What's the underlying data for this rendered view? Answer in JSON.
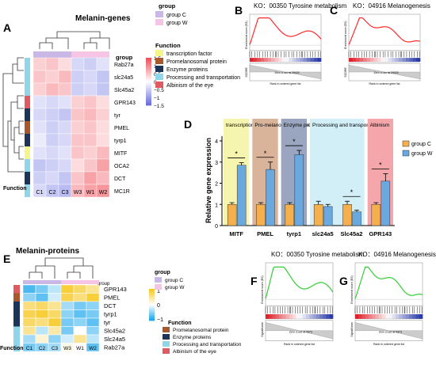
{
  "panels": {
    "A": {
      "letter": "A",
      "title": "Melanin-genes",
      "col_header": "group",
      "function_label": "Function",
      "genes": [
        "Rab27a",
        "slc24a5",
        "Slc45a2",
        "GPR143",
        "tyr",
        "PMEL",
        "tyrp1",
        "MITF",
        "OCA2",
        "DCT",
        "MC1R"
      ],
      "columns": [
        "C1",
        "C2",
        "C3",
        "W3",
        "W1",
        "W2"
      ],
      "column_groups": [
        "C",
        "C",
        "C",
        "W",
        "W",
        "W"
      ],
      "gene_functions": [
        "processing",
        "processing",
        "processing",
        "albinism",
        "enzyme",
        "promelanosomal",
        "enzyme",
        "transcription",
        "processing",
        "enzyme",
        "processing"
      ],
      "values": [
        [
          0.4,
          0.5,
          0.3,
          -0.4,
          -0.5,
          -0.3
        ],
        [
          0.5,
          0.4,
          0.6,
          -0.5,
          -0.4,
          -0.6
        ],
        [
          0.4,
          0.6,
          0.5,
          -0.5,
          -0.4,
          -0.6
        ],
        [
          -0.3,
          -0.4,
          -0.3,
          0.4,
          0.5,
          0.3
        ],
        [
          -0.4,
          -0.5,
          -0.6,
          0.5,
          0.6,
          0.4
        ],
        [
          -0.3,
          -0.5,
          -0.4,
          0.4,
          0.5,
          0.3
        ],
        [
          -0.2,
          -0.5,
          -0.4,
          0.5,
          0.5,
          0.3
        ],
        [
          -0.3,
          -0.4,
          -0.3,
          0.5,
          0.4,
          0.6
        ],
        [
          -0.6,
          -0.5,
          -0.4,
          0.3,
          0.5,
          0.8
        ],
        [
          -0.5,
          -0.4,
          -0.6,
          0.5,
          0.8,
          0.6
        ],
        [
          -0.4,
          -0.6,
          -0.7,
          0.6,
          0.8,
          0.9
        ]
      ],
      "row_footer_label": "Function",
      "scale_ticks": [
        "1.5",
        "1",
        "0.5",
        "0",
        "−0.5",
        "−1",
        "−1.5"
      ],
      "legend_group_title": "group",
      "legend_groups": [
        "group C",
        "group W"
      ],
      "legend_function_title": "Function",
      "legend_functions": [
        "transcription factor",
        "Promelanosomal protein",
        "Enzyme proteins",
        "Processing and transportation",
        "Albinism of the eye"
      ]
    },
    "B": {
      "letter": "B",
      "title": "KO：00350 Tyrosine metabolism",
      "ylabel_top": "Enrichment score (ES)",
      "ylabel_bottom": "SCORE",
      "xlabel": "Rank in ordered gene list",
      "zero_cross": "Zero cross at 29023"
    },
    "C": {
      "letter": "C",
      "title": "KO：04916 Melanogenesis",
      "ylabel_top": "Enrichment score (ES)",
      "ylabel_bottom": "SCORE",
      "xlabel": "Rank in ordered gene list",
      "zero_cross": "Zero cross at 29023"
    },
    "D": {
      "letter": "D",
      "ylabel": "Relative gene expression",
      "legend": [
        "group C",
        "group W"
      ],
      "boxes": [
        "transcription factor",
        "Pro-melanosomal protein",
        "Enzyme proteins",
        "Processing and transportation",
        "Albinism"
      ],
      "significance": [
        "*",
        "*",
        "*",
        "*",
        "*"
      ]
    },
    "E": {
      "letter": "E",
      "title": "Melanin-proteins",
      "col_header": "group",
      "proteins": [
        "GPR143",
        "PMEL",
        "DCT",
        "tyrp1",
        "tyr",
        "Slc45a2",
        "Slc24a5",
        "Rab27a"
      ],
      "columns": [
        "C1",
        "C2",
        "C3",
        "W3",
        "W1",
        "W2"
      ],
      "row_footer_label": "Function",
      "scale_ticks": [
        "1",
        "0",
        "−1"
      ],
      "legend_group_title": "group",
      "legend_groups": [
        "group C",
        "group W"
      ],
      "legend_function_title": "Function",
      "legend_functions": [
        "Promelanosomal protein",
        "Enzyme proteins",
        "Processing and transportation",
        "Albinism of the eye"
      ]
    },
    "F": {
      "letter": "F",
      "title": "KO：00350 Tyrosine metabolism",
      "ylabel_top": "Enrichment score (ES)",
      "ylabel_bottom": "SignalNoise",
      "xlabel": "Rank in ordered gene list",
      "zero_cross": "Zero cross at 4373"
    },
    "G": {
      "letter": "G",
      "title": "KO：04916 Melanogenesis",
      "ylabel_top": "Enrichment score (ES)",
      "ylabel_bottom": "SignalNoise",
      "xlabel": "Rank in ordered gene list",
      "zero_cross": "Zero cross at 4373"
    }
  },
  "colors": {
    "group_C": "#c9b7e6",
    "group_W": "#f6c4e4",
    "transcription": "#f6f58a",
    "promelanosomal": "#a8582a",
    "enzyme": "#1c3457",
    "processing": "#8fd6ea",
    "albinism": "#e05a62",
    "bar_C": "#f5b04d",
    "bar_W": "#6aa8e0",
    "box_transcription": "#f6f5b0",
    "box_promelanosomal": "#d9b39a",
    "box_enzyme": "#9aa6c0",
    "box_processing": "#d2eef7",
    "box_albinism": "#f4a6ab",
    "es_red": "#ff2a2a",
    "es_green": "#33cc33"
  },
  "chart_data": [
    {
      "type": "bar",
      "title": "",
      "ylabel": "Relative gene expression",
      "categories": [
        "MITF",
        "PMEL",
        "tyrp1",
        "slc24a5",
        "Slc45a2",
        "GPR143"
      ],
      "series": [
        {
          "name": "group C",
          "values": [
            1.0,
            1.0,
            1.0,
            1.0,
            1.0,
            1.0
          ],
          "errors": [
            0.08,
            0.08,
            0.08,
            0.15,
            0.15,
            0.08
          ]
        },
        {
          "name": "group W",
          "values": [
            2.85,
            2.65,
            3.35,
            0.9,
            0.65,
            2.1
          ],
          "errors": [
            0.12,
            0.35,
            0.2,
            0.1,
            0.08,
            0.35
          ]
        }
      ],
      "ylim": [
        0,
        4
      ],
      "yticks": [
        "0",
        "1",
        "2",
        "3",
        "4"
      ],
      "significance": [
        "*",
        "*",
        "*",
        "",
        "*",
        "*"
      ],
      "legend_position": "top-right"
    }
  ]
}
